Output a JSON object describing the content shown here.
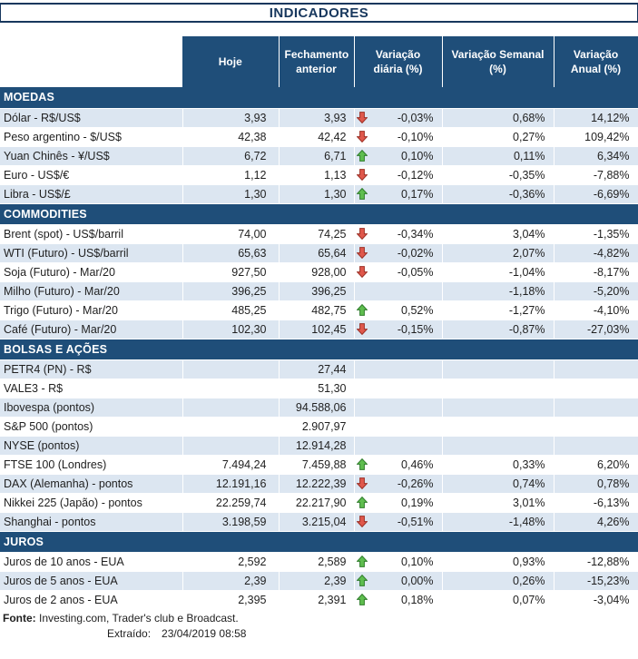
{
  "title": "INDICADORES",
  "header": {
    "columns": [
      "Hoje",
      "Fechamento anterior",
      "Variação diária (%)",
      "Variação Semanal (%)",
      "Variação Anual (%)"
    ]
  },
  "colors": {
    "header_bg": "#1F4E79",
    "stripe_bg": "#DCE6F1",
    "title_text": "#17375D",
    "arrow_up": "#5FBE4F",
    "arrow_up_border": "#2F7D2B",
    "arrow_down": "#E0584C",
    "arrow_down_border": "#9C2F24"
  },
  "sections": [
    {
      "label": "MOEDAS",
      "start": "stripe",
      "rows": [
        {
          "label": "Dólar - R$/US$",
          "hoje": "3,93",
          "fechamento": "3,93",
          "arrow": "down",
          "diaria": "-0,03%",
          "semanal": "0,68%",
          "anual": "14,12%"
        },
        {
          "label": "Peso argentino - $/US$",
          "hoje": "42,38",
          "fechamento": "42,42",
          "arrow": "down",
          "diaria": "-0,10%",
          "semanal": "0,27%",
          "anual": "109,42%"
        },
        {
          "label": "Yuan Chinês - ¥/US$",
          "hoje": "6,72",
          "fechamento": "6,71",
          "arrow": "up",
          "diaria": "0,10%",
          "semanal": "0,11%",
          "anual": "6,34%"
        },
        {
          "label": "Euro - US$/€",
          "hoje": "1,12",
          "fechamento": "1,13",
          "arrow": "down",
          "diaria": "-0,12%",
          "semanal": "-0,35%",
          "anual": "-7,88%"
        },
        {
          "label": "Libra - US$/£",
          "hoje": "1,30",
          "fechamento": "1,30",
          "arrow": "up",
          "diaria": "0,17%",
          "semanal": "-0,36%",
          "anual": "-6,69%"
        }
      ]
    },
    {
      "label": "COMMODITIES",
      "start": "plain",
      "rows": [
        {
          "label": "Brent (spot) - US$/barril",
          "hoje": "74,00",
          "fechamento": "74,25",
          "arrow": "down",
          "diaria": "-0,34%",
          "semanal": "3,04%",
          "anual": "-1,35%"
        },
        {
          "label": "WTI (Futuro) - US$/barril",
          "hoje": "65,63",
          "fechamento": "65,64",
          "arrow": "down",
          "diaria": "-0,02%",
          "semanal": "2,07%",
          "anual": "-4,82%"
        },
        {
          "label": "Soja (Futuro) - Mar/20",
          "hoje": "927,50",
          "fechamento": "928,00",
          "arrow": "down",
          "diaria": "-0,05%",
          "semanal": "-1,04%",
          "anual": "-8,17%"
        },
        {
          "label": "Milho (Futuro) - Mar/20",
          "hoje": "396,25",
          "fechamento": "396,25",
          "arrow": "",
          "diaria": "",
          "semanal": "-1,18%",
          "anual": "-5,20%"
        },
        {
          "label": "Trigo (Futuro) - Mar/20",
          "hoje": "485,25",
          "fechamento": "482,75",
          "arrow": "up",
          "diaria": "0,52%",
          "semanal": "-1,27%",
          "anual": "-4,10%"
        },
        {
          "label": "Café (Futuro) - Mar/20",
          "hoje": "102,30",
          "fechamento": "102,45",
          "arrow": "down",
          "diaria": "-0,15%",
          "semanal": "-0,87%",
          "anual": "-27,03%"
        }
      ]
    },
    {
      "label": "BOLSAS E AÇÕES",
      "start": "stripe",
      "rows": [
        {
          "label": "PETR4 (PN) - R$",
          "hoje": "",
          "fechamento": "27,44",
          "arrow": "",
          "diaria": "",
          "semanal": "",
          "anual": ""
        },
        {
          "label": "VALE3 - R$",
          "hoje": "",
          "fechamento": "51,30",
          "arrow": "",
          "diaria": "",
          "semanal": "",
          "anual": ""
        },
        {
          "label": "Ibovespa (pontos)",
          "hoje": "",
          "fechamento": "94.588,06",
          "arrow": "",
          "diaria": "",
          "semanal": "",
          "anual": ""
        },
        {
          "label": "S&P 500 (pontos)",
          "hoje": "",
          "fechamento": "2.907,97",
          "arrow": "",
          "diaria": "",
          "semanal": "",
          "anual": ""
        },
        {
          "label": "NYSE (pontos)",
          "hoje": "",
          "fechamento": "12.914,28",
          "arrow": "",
          "diaria": "",
          "semanal": "",
          "anual": ""
        },
        {
          "label": "FTSE 100 (Londres)",
          "hoje": "7.494,24",
          "fechamento": "7.459,88",
          "arrow": "up",
          "diaria": "0,46%",
          "semanal": "0,33%",
          "anual": "6,20%"
        },
        {
          "label": "DAX (Alemanha) - pontos",
          "hoje": "12.191,16",
          "fechamento": "12.222,39",
          "arrow": "down",
          "diaria": "-0,26%",
          "semanal": "0,74%",
          "anual": "0,78%"
        },
        {
          "label": "Nikkei 225 (Japão) - pontos",
          "hoje": "22.259,74",
          "fechamento": "22.217,90",
          "arrow": "up",
          "diaria": "0,19%",
          "semanal": "3,01%",
          "anual": "-6,13%"
        },
        {
          "label": "Shanghai - pontos",
          "hoje": "3.198,59",
          "fechamento": "3.215,04",
          "arrow": "down",
          "diaria": "-0,51%",
          "semanal": "-1,48%",
          "anual": "4,26%"
        }
      ]
    },
    {
      "label": "JUROS",
      "start": "plain",
      "rows": [
        {
          "label": "Juros de 10 anos - EUA",
          "hoje": "2,592",
          "fechamento": "2,589",
          "arrow": "up",
          "diaria": "0,10%",
          "semanal": "0,93%",
          "anual": "-12,88%"
        },
        {
          "label": "Juros de 5 anos - EUA",
          "hoje": "2,39",
          "fechamento": "2,39",
          "arrow": "up",
          "diaria": "0,00%",
          "semanal": "0,26%",
          "anual": "-15,23%"
        },
        {
          "label": "Juros de 2 anos - EUA",
          "hoje": "2,395",
          "fechamento": "2,391",
          "arrow": "up",
          "diaria": "0,18%",
          "semanal": "0,07%",
          "anual": "-3,04%"
        }
      ]
    }
  ],
  "footer": {
    "source_label": "Fonte:",
    "source_text": " Investing.com, Trader's club e Broadcast.",
    "extracted_label": "Extraído:",
    "extracted_value": "23/04/2019 08:58"
  }
}
